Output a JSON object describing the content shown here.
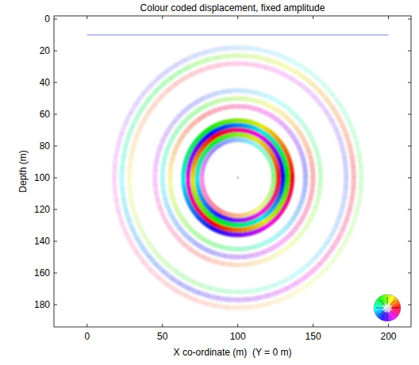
{
  "chart_data": {
    "type": "wavefield",
    "title": "Colour coded displacement, fixed amplitude",
    "x_label": "X co-ordinate (m)  (Y = 0 m)",
    "y_label": "Depth (m)",
    "xlim": [
      -22,
      215
    ],
    "ylim": [
      -2,
      194
    ],
    "xticks": [
      0,
      50,
      100,
      150,
      200
    ],
    "yticks": [
      0,
      20,
      40,
      60,
      80,
      100,
      120,
      140,
      160,
      180
    ],
    "surface_line": {
      "x": [
        0,
        200
      ],
      "y": [
        10,
        10
      ],
      "color": "#7080d0"
    },
    "center": [
      100,
      100
    ],
    "rings": [
      {
        "radius": 82,
        "amplitude": 0.15,
        "phase": 120
      },
      {
        "radius": 77,
        "amplitude": 0.25,
        "phase": 0
      },
      {
        "radius": 72,
        "amplitude": 0.18,
        "phase": 240
      },
      {
        "radius": 55,
        "amplitude": 0.2,
        "phase": 120
      },
      {
        "radius": 50,
        "amplitude": 0.28,
        "phase": 0
      },
      {
        "radius": 45,
        "amplitude": 0.3,
        "phase": 240
      },
      {
        "radius": 36,
        "amplitude": 0.95,
        "phase": 0
      },
      {
        "radius": 33,
        "amplitude": 1,
        "phase": 120
      },
      {
        "radius": 30,
        "amplitude": 1,
        "phase": 240
      },
      {
        "radius": 27,
        "amplitude": 0.9,
        "phase": 0
      },
      {
        "radius": 24,
        "amplitude": 0.45,
        "phase": 120
      }
    ]
  }
}
